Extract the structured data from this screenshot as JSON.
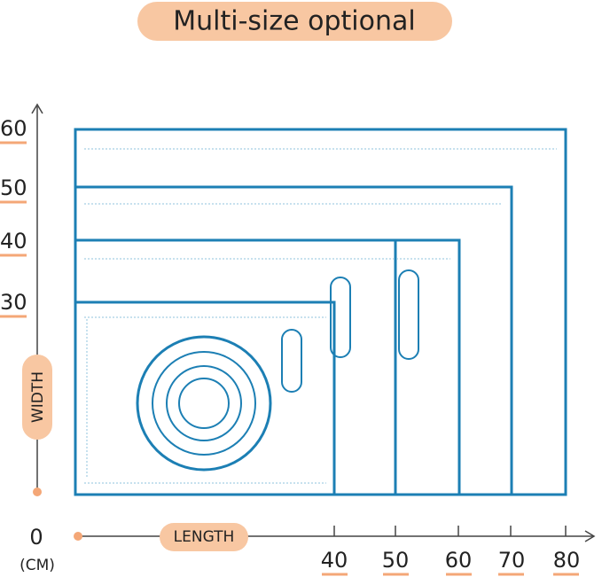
{
  "title": "Multi-size optional",
  "width_axis": {
    "label": "WIDTH",
    "ticks": [
      60,
      50,
      40,
      30
    ]
  },
  "length_axis": {
    "origin": "0",
    "unit": "(CM)",
    "label": "LENGTH",
    "ticks": [
      40,
      50,
      60,
      70,
      80
    ]
  }
}
